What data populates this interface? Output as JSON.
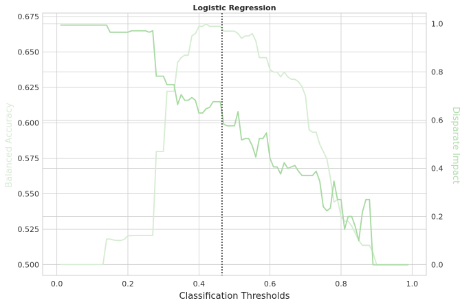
{
  "chart_data": {
    "type": "line",
    "title": "Logistic Regression",
    "xlabel": "Classification Thresholds",
    "ylabel_left": "Balanced Accuracy",
    "ylabel_right": "Disparate Impact",
    "xlim": [
      -0.04,
      1.04
    ],
    "ylim_left": [
      0.4925,
      0.6775
    ],
    "ylim_right": [
      -0.045,
      1.045
    ],
    "x_ticks": [
      "0.0",
      "0.2",
      "0.4",
      "0.6",
      "0.8",
      "1.0"
    ],
    "y_ticks_left": [
      "0.500",
      "0.525",
      "0.550",
      "0.575",
      "0.600",
      "0.625",
      "0.650",
      "0.675"
    ],
    "y_ticks_right": [
      "0.0",
      "0.2",
      "0.4",
      "0.6",
      "0.8",
      "1.0"
    ],
    "grid": true,
    "threshold_marker": 0.465,
    "colors": {
      "balanced_accuracy": "#a6d9a0",
      "disparate_impact": "#d4ecd0",
      "threshold_line": "#333333",
      "grid": "#cccccc",
      "axis_label_left": "#d8ebd5",
      "axis_label_right": "#b3dcae"
    },
    "series": [
      {
        "axis": "left",
        "x": [
          0.01,
          0.02,
          0.03,
          0.04,
          0.05,
          0.06,
          0.07,
          0.08,
          0.09,
          0.1,
          0.11,
          0.12,
          0.13,
          0.14,
          0.15,
          0.16,
          0.17,
          0.18,
          0.19,
          0.2,
          0.21,
          0.22,
          0.23,
          0.24,
          0.25,
          0.26,
          0.27,
          0.28,
          0.29,
          0.3,
          0.31,
          0.32,
          0.33,
          0.34,
          0.35,
          0.36,
          0.37,
          0.38,
          0.39,
          0.4,
          0.41,
          0.42,
          0.43,
          0.44,
          0.45,
          0.46,
          0.47,
          0.48,
          0.49,
          0.5,
          0.51,
          0.52,
          0.53,
          0.54,
          0.55,
          0.56,
          0.57,
          0.58,
          0.59,
          0.6,
          0.61,
          0.62,
          0.63,
          0.64,
          0.65,
          0.66,
          0.67,
          0.68,
          0.69,
          0.7,
          0.71,
          0.72,
          0.73,
          0.74,
          0.75,
          0.76,
          0.77,
          0.78,
          0.79,
          0.8,
          0.81,
          0.82,
          0.83,
          0.84,
          0.85,
          0.86,
          0.87,
          0.88,
          0.89,
          0.9,
          0.91,
          0.92,
          0.93,
          0.94,
          0.95,
          0.96,
          0.97,
          0.98,
          0.99
        ],
        "values": [
          0.669,
          0.669,
          0.669,
          0.669,
          0.669,
          0.669,
          0.669,
          0.669,
          0.669,
          0.669,
          0.669,
          0.669,
          0.669,
          0.669,
          0.664,
          0.664,
          0.664,
          0.664,
          0.664,
          0.664,
          0.665,
          0.665,
          0.665,
          0.665,
          0.665,
          0.664,
          0.665,
          0.633,
          0.633,
          0.633,
          0.627,
          0.627,
          0.627,
          0.613,
          0.62,
          0.616,
          0.616,
          0.618,
          0.616,
          0.607,
          0.607,
          0.61,
          0.611,
          0.615,
          0.615,
          0.615,
          0.599,
          0.598,
          0.598,
          0.598,
          0.608,
          0.588,
          0.589,
          0.589,
          0.584,
          0.576,
          0.589,
          0.589,
          0.593,
          0.575,
          0.569,
          0.569,
          0.564,
          0.572,
          0.568,
          0.569,
          0.57,
          0.566,
          0.563,
          0.563,
          0.563,
          0.563,
          0.566,
          0.559,
          0.541,
          0.538,
          0.54,
          0.559,
          0.546,
          0.546,
          0.525,
          0.534,
          0.534,
          0.527,
          0.517,
          0.537,
          0.546,
          0.546,
          0.5,
          0.5,
          0.5,
          0.5,
          0.5,
          0.5,
          0.5,
          0.5,
          0.5,
          0.5,
          0.5
        ]
      },
      {
        "axis": "right",
        "x": [
          0.01,
          0.02,
          0.03,
          0.04,
          0.05,
          0.06,
          0.07,
          0.08,
          0.09,
          0.1,
          0.11,
          0.12,
          0.13,
          0.14,
          0.15,
          0.16,
          0.17,
          0.18,
          0.19,
          0.2,
          0.21,
          0.22,
          0.23,
          0.24,
          0.25,
          0.26,
          0.27,
          0.28,
          0.29,
          0.3,
          0.31,
          0.32,
          0.33,
          0.34,
          0.35,
          0.36,
          0.37,
          0.38,
          0.39,
          0.4,
          0.41,
          0.42,
          0.43,
          0.44,
          0.45,
          0.46,
          0.47,
          0.48,
          0.49,
          0.5,
          0.51,
          0.52,
          0.53,
          0.54,
          0.55,
          0.56,
          0.57,
          0.58,
          0.59,
          0.6,
          0.61,
          0.62,
          0.63,
          0.64,
          0.65,
          0.66,
          0.67,
          0.68,
          0.69,
          0.7,
          0.71,
          0.72,
          0.73,
          0.74,
          0.75,
          0.76,
          0.77,
          0.78,
          0.79,
          0.8,
          0.81,
          0.82,
          0.83,
          0.84,
          0.85,
          0.86,
          0.87,
          0.88,
          0.89,
          0.9,
          0.91,
          0.92,
          0.93,
          0.94,
          0.95,
          0.96,
          0.97,
          0.98,
          0.99
        ],
        "values": [
          0.0,
          0.0,
          0.0,
          0.0,
          0.0,
          0.0,
          0.0,
          0.0,
          0.0,
          0.0,
          0.0,
          0.0,
          0.0,
          0.106,
          0.106,
          0.102,
          0.1,
          0.1,
          0.105,
          0.12,
          0.12,
          0.121,
          0.121,
          0.121,
          0.121,
          0.121,
          0.121,
          0.47,
          0.47,
          0.47,
          0.72,
          0.72,
          0.72,
          0.84,
          0.86,
          0.87,
          0.87,
          0.95,
          0.96,
          0.99,
          0.99,
          1.0,
          0.99,
          0.99,
          0.99,
          0.99,
          0.97,
          0.97,
          0.97,
          0.97,
          0.96,
          0.94,
          0.95,
          0.95,
          0.96,
          0.93,
          0.86,
          0.86,
          0.86,
          0.81,
          0.8,
          0.8,
          0.78,
          0.8,
          0.78,
          0.77,
          0.77,
          0.76,
          0.74,
          0.7,
          0.56,
          0.55,
          0.55,
          0.5,
          0.47,
          0.44,
          0.36,
          0.26,
          0.27,
          0.2,
          0.18,
          0.18,
          0.16,
          0.13,
          0.1,
          0.08,
          0.08,
          0.08,
          0.05,
          0.0,
          0.0,
          0.0,
          0.0,
          0.0,
          0.0,
          0.0,
          0.0,
          0.0,
          0.0
        ]
      }
    ]
  }
}
